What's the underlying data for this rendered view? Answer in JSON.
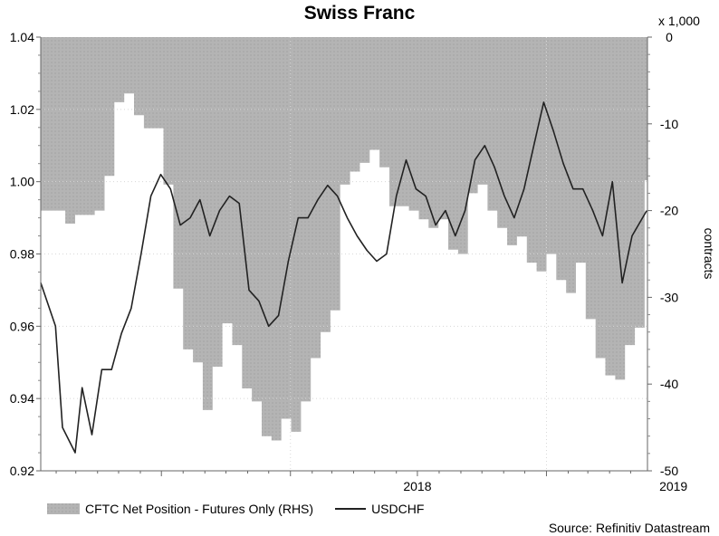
{
  "chart_data": {
    "type": "area+line",
    "title": "Swiss Franc",
    "left_axis": {
      "ylim": [
        0.92,
        1.04
      ],
      "ticks": [
        "0.92",
        "0.94",
        "0.96",
        "0.98",
        "1.00",
        "1.02",
        "1.04"
      ]
    },
    "right_axis": {
      "ylim": [
        -50,
        0
      ],
      "ticks": [
        "-50",
        "-40",
        "-30",
        "-20",
        "-10",
        "0"
      ],
      "multiplier_label": "x 1,000",
      "label": "contracts"
    },
    "x_axis": {
      "range": [
        "2017-01-10",
        "2019-05-25"
      ],
      "tick_labels": [
        "2018",
        "2019"
      ]
    },
    "series": [
      {
        "name": "CFTC Net Position - Futures Only (RHS)",
        "type": "area",
        "axis": "right",
        "color": "#b4b4b4",
        "x": [
          "2017-01-10",
          "2017-01-31",
          "2017-02-14",
          "2017-02-28",
          "2017-03-14",
          "2017-03-28",
          "2017-04-11",
          "2017-04-25",
          "2017-05-09",
          "2017-05-23",
          "2017-06-06",
          "2017-06-20",
          "2017-07-04",
          "2017-07-18",
          "2017-08-01",
          "2017-08-15",
          "2017-08-29",
          "2017-09-12",
          "2017-09-26",
          "2017-10-10",
          "2017-10-24",
          "2017-11-07",
          "2017-11-21",
          "2017-12-05",
          "2017-12-19",
          "2018-01-02",
          "2018-01-16",
          "2018-01-30",
          "2018-02-13",
          "2018-02-27",
          "2018-03-13",
          "2018-03-27",
          "2018-04-10",
          "2018-04-24",
          "2018-05-08",
          "2018-05-22",
          "2018-06-05",
          "2018-06-19",
          "2018-07-03",
          "2018-07-17",
          "2018-07-31",
          "2018-08-14",
          "2018-08-28",
          "2018-09-11",
          "2018-09-25",
          "2018-10-09",
          "2018-10-23",
          "2018-11-06",
          "2018-11-20",
          "2018-12-04",
          "2018-12-18",
          "2019-01-01",
          "2019-01-15",
          "2019-01-29",
          "2019-02-12",
          "2019-02-26",
          "2019-03-12",
          "2019-03-26",
          "2019-04-09",
          "2019-04-23",
          "2019-05-07",
          "2019-05-21"
        ],
        "values": [
          -20,
          -20,
          -21.5,
          -20.5,
          -20.5,
          -20,
          -16,
          -7.5,
          -6.5,
          -9,
          -10.5,
          -10.5,
          -17,
          -29,
          -36,
          -37.5,
          -43,
          -38,
          -33,
          -35.5,
          -40.5,
          -42,
          -46,
          -46.5,
          -44,
          -45.5,
          -42,
          -37,
          -34,
          -31.5,
          -17,
          -15.5,
          -14.5,
          -13,
          -15,
          -19.5,
          -19.5,
          -20,
          -21,
          -22,
          -21,
          -24.5,
          -25,
          -18,
          -17,
          -20,
          -22,
          -24,
          -23,
          -26,
          -27,
          -25,
          -28,
          -29.5,
          -26,
          -32.5,
          -37,
          -39,
          -39.5,
          -35.5,
          -33.5,
          -16.5
        ]
      },
      {
        "name": "USDCHF",
        "type": "line",
        "axis": "left",
        "color": "#222222",
        "x": [
          "2017-01-10",
          "2017-01-31",
          "2017-02-10",
          "2017-02-28",
          "2017-03-10",
          "2017-03-24",
          "2017-04-07",
          "2017-04-21",
          "2017-05-05",
          "2017-05-19",
          "2017-06-02",
          "2017-06-16",
          "2017-06-30",
          "2017-07-14",
          "2017-07-28",
          "2017-08-11",
          "2017-08-25",
          "2017-09-08",
          "2017-09-22",
          "2017-10-06",
          "2017-10-20",
          "2017-11-03",
          "2017-11-17",
          "2017-12-01",
          "2017-12-15",
          "2017-12-29",
          "2018-01-12",
          "2018-01-26",
          "2018-02-09",
          "2018-02-23",
          "2018-03-09",
          "2018-03-23",
          "2018-04-06",
          "2018-04-20",
          "2018-05-04",
          "2018-05-18",
          "2018-06-01",
          "2018-06-15",
          "2018-06-29",
          "2018-07-13",
          "2018-07-27",
          "2018-08-10",
          "2018-08-24",
          "2018-09-07",
          "2018-09-21",
          "2018-10-05",
          "2018-10-19",
          "2018-11-02",
          "2018-11-16",
          "2018-11-30",
          "2018-12-14",
          "2018-12-28",
          "2019-01-11",
          "2019-01-25",
          "2019-02-08",
          "2019-02-22",
          "2019-03-08",
          "2019-03-22",
          "2019-04-05",
          "2019-04-19",
          "2019-05-03",
          "2019-05-24"
        ],
        "values": [
          0.972,
          0.96,
          0.932,
          0.925,
          0.943,
          0.93,
          0.948,
          0.948,
          0.958,
          0.965,
          0.98,
          0.996,
          1.002,
          0.998,
          0.988,
          0.99,
          0.995,
          0.985,
          0.992,
          0.996,
          0.994,
          0.97,
          0.967,
          0.96,
          0.963,
          0.978,
          0.99,
          0.99,
          0.995,
          0.999,
          0.996,
          0.99,
          0.985,
          0.981,
          0.978,
          0.98,
          0.996,
          1.006,
          0.998,
          0.996,
          0.988,
          0.992,
          0.985,
          0.992,
          1.006,
          1.01,
          1.004,
          0.996,
          0.99,
          0.998,
          1.01,
          1.022,
          1.014,
          1.005,
          0.998,
          0.998,
          0.992,
          0.985,
          1.0,
          0.972,
          0.985,
          0.992
        ]
      }
    ]
  },
  "source_note": "Source: Refinitiv Datastream"
}
